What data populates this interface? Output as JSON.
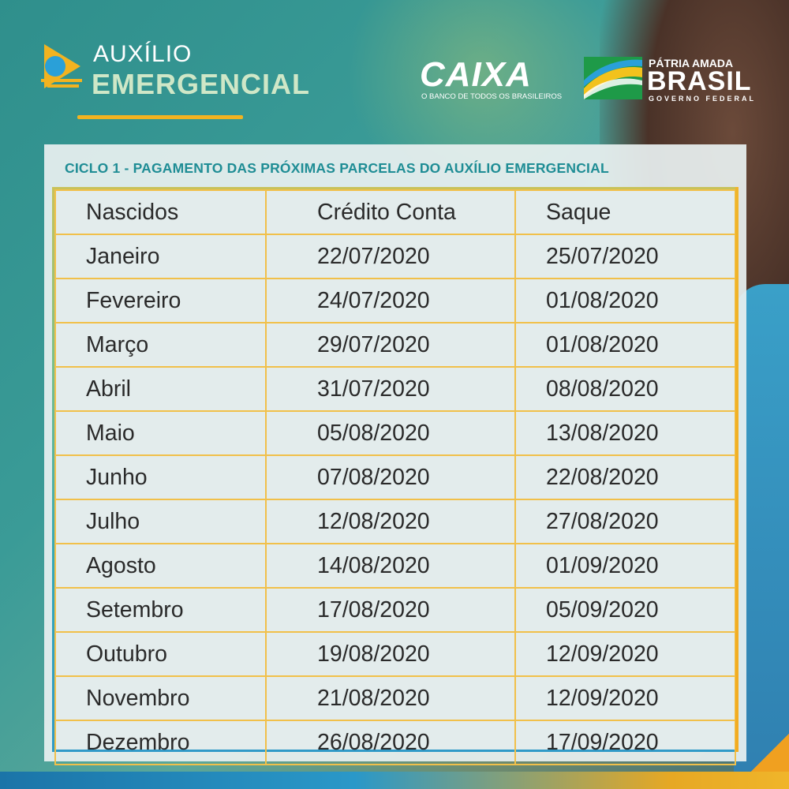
{
  "brand": {
    "program_line1": "AUXÍLIO",
    "program_line2": "EMERGENCIAL",
    "caixa_name": "CAIXA",
    "caixa_tagline": "O BANCO DE TODOS OS BRASILEIROS",
    "gov_line1": "PÁTRIA AMADA",
    "gov_line2": "BRASIL",
    "gov_line3": "GOVERNO FEDERAL"
  },
  "colors": {
    "accent_yellow": "#f2b320",
    "title_teal": "#1f8d95",
    "panel_bg": "#e3ecec"
  },
  "schedule": {
    "title": "CICLO 1 - PAGAMENTO DAS PRÓXIMAS PARCELAS DO AUXÍLIO EMERGENCIAL",
    "headers": [
      "Nascidos",
      "Crédito Conta",
      "Saque"
    ],
    "rows": [
      [
        "Janeiro",
        "22/07/2020",
        "25/07/2020"
      ],
      [
        "Fevereiro",
        "24/07/2020",
        "01/08/2020"
      ],
      [
        "Março",
        "29/07/2020",
        "01/08/2020"
      ],
      [
        "Abril",
        "31/07/2020",
        "08/08/2020"
      ],
      [
        "Maio",
        "05/08/2020",
        "13/08/2020"
      ],
      [
        "Junho",
        "07/08/2020",
        "22/08/2020"
      ],
      [
        "Julho",
        "12/08/2020",
        "27/08/2020"
      ],
      [
        "Agosto",
        "14/08/2020",
        "01/09/2020"
      ],
      [
        "Setembro",
        "17/08/2020",
        "05/09/2020"
      ],
      [
        "Outubro",
        "19/08/2020",
        "12/09/2020"
      ],
      [
        "Novembro",
        "21/08/2020",
        "12/09/2020"
      ],
      [
        "Dezembro",
        "26/08/2020",
        "17/09/2020"
      ]
    ]
  }
}
